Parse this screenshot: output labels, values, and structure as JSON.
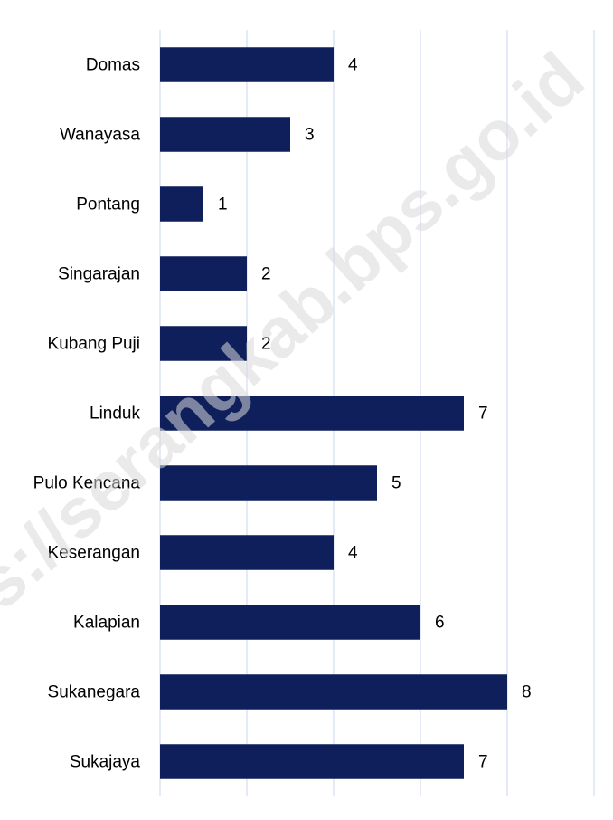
{
  "chart_data": {
    "type": "barh",
    "watermark": "https://serangkab.bps.go.id",
    "categories": [
      "Domas",
      "Wanayasa",
      "Pontang",
      "Singarajan",
      "Kubang Puji",
      "Linduk",
      "Pulo Kencana",
      "Keserangan",
      "Kalapian",
      "Sukanegara",
      "Sukajaya"
    ],
    "values": [
      4,
      3,
      1,
      2,
      2,
      7,
      5,
      4,
      6,
      8,
      7
    ],
    "color": "#0e1f5b",
    "xlim": [
      0,
      10
    ],
    "xticks": [
      0,
      2,
      4,
      6,
      8,
      10
    ],
    "grid": true,
    "data_labels": true
  }
}
